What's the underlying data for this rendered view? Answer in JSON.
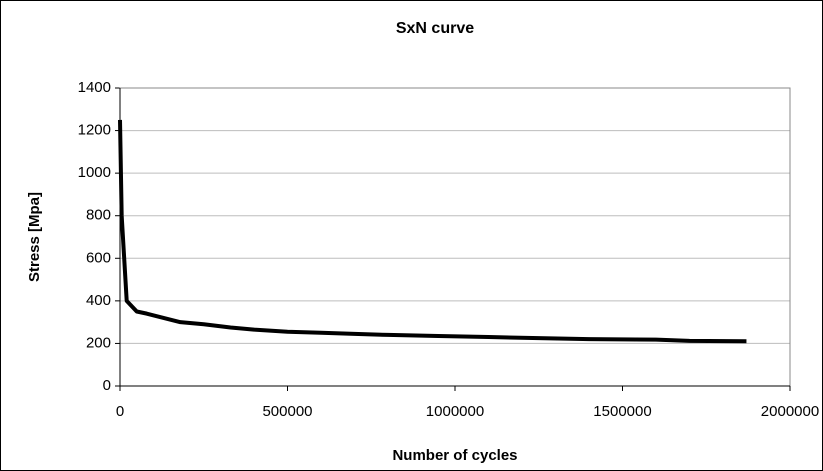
{
  "chart_data": {
    "type": "line",
    "title": "SxN curve",
    "x_label": "Number of cycles",
    "y_label": "Stress [Mpa]",
    "x": [
      0,
      5000,
      20000,
      50000,
      80000,
      130000,
      180000,
      250000,
      330000,
      400000,
      500000,
      600000,
      700000,
      800000,
      950000,
      1100000,
      1250000,
      1400000,
      1600000,
      1700000,
      1870000
    ],
    "series": [
      {
        "name": "Stress",
        "color": "#000000",
        "values": [
          1250,
          800,
          400,
          350,
          340,
          320,
          300,
          290,
          275,
          265,
          255,
          250,
          245,
          240,
          235,
          230,
          225,
          220,
          218,
          212,
          210
        ]
      }
    ],
    "xlim": [
      0,
      2000000
    ],
    "xticks": [
      0,
      500000,
      1000000,
      1500000,
      2000000
    ],
    "ylim": [
      0,
      1400
    ],
    "yticks": [
      0,
      200,
      400,
      600,
      800,
      1000,
      1200,
      1400
    ],
    "grid": true,
    "legend": false
  }
}
